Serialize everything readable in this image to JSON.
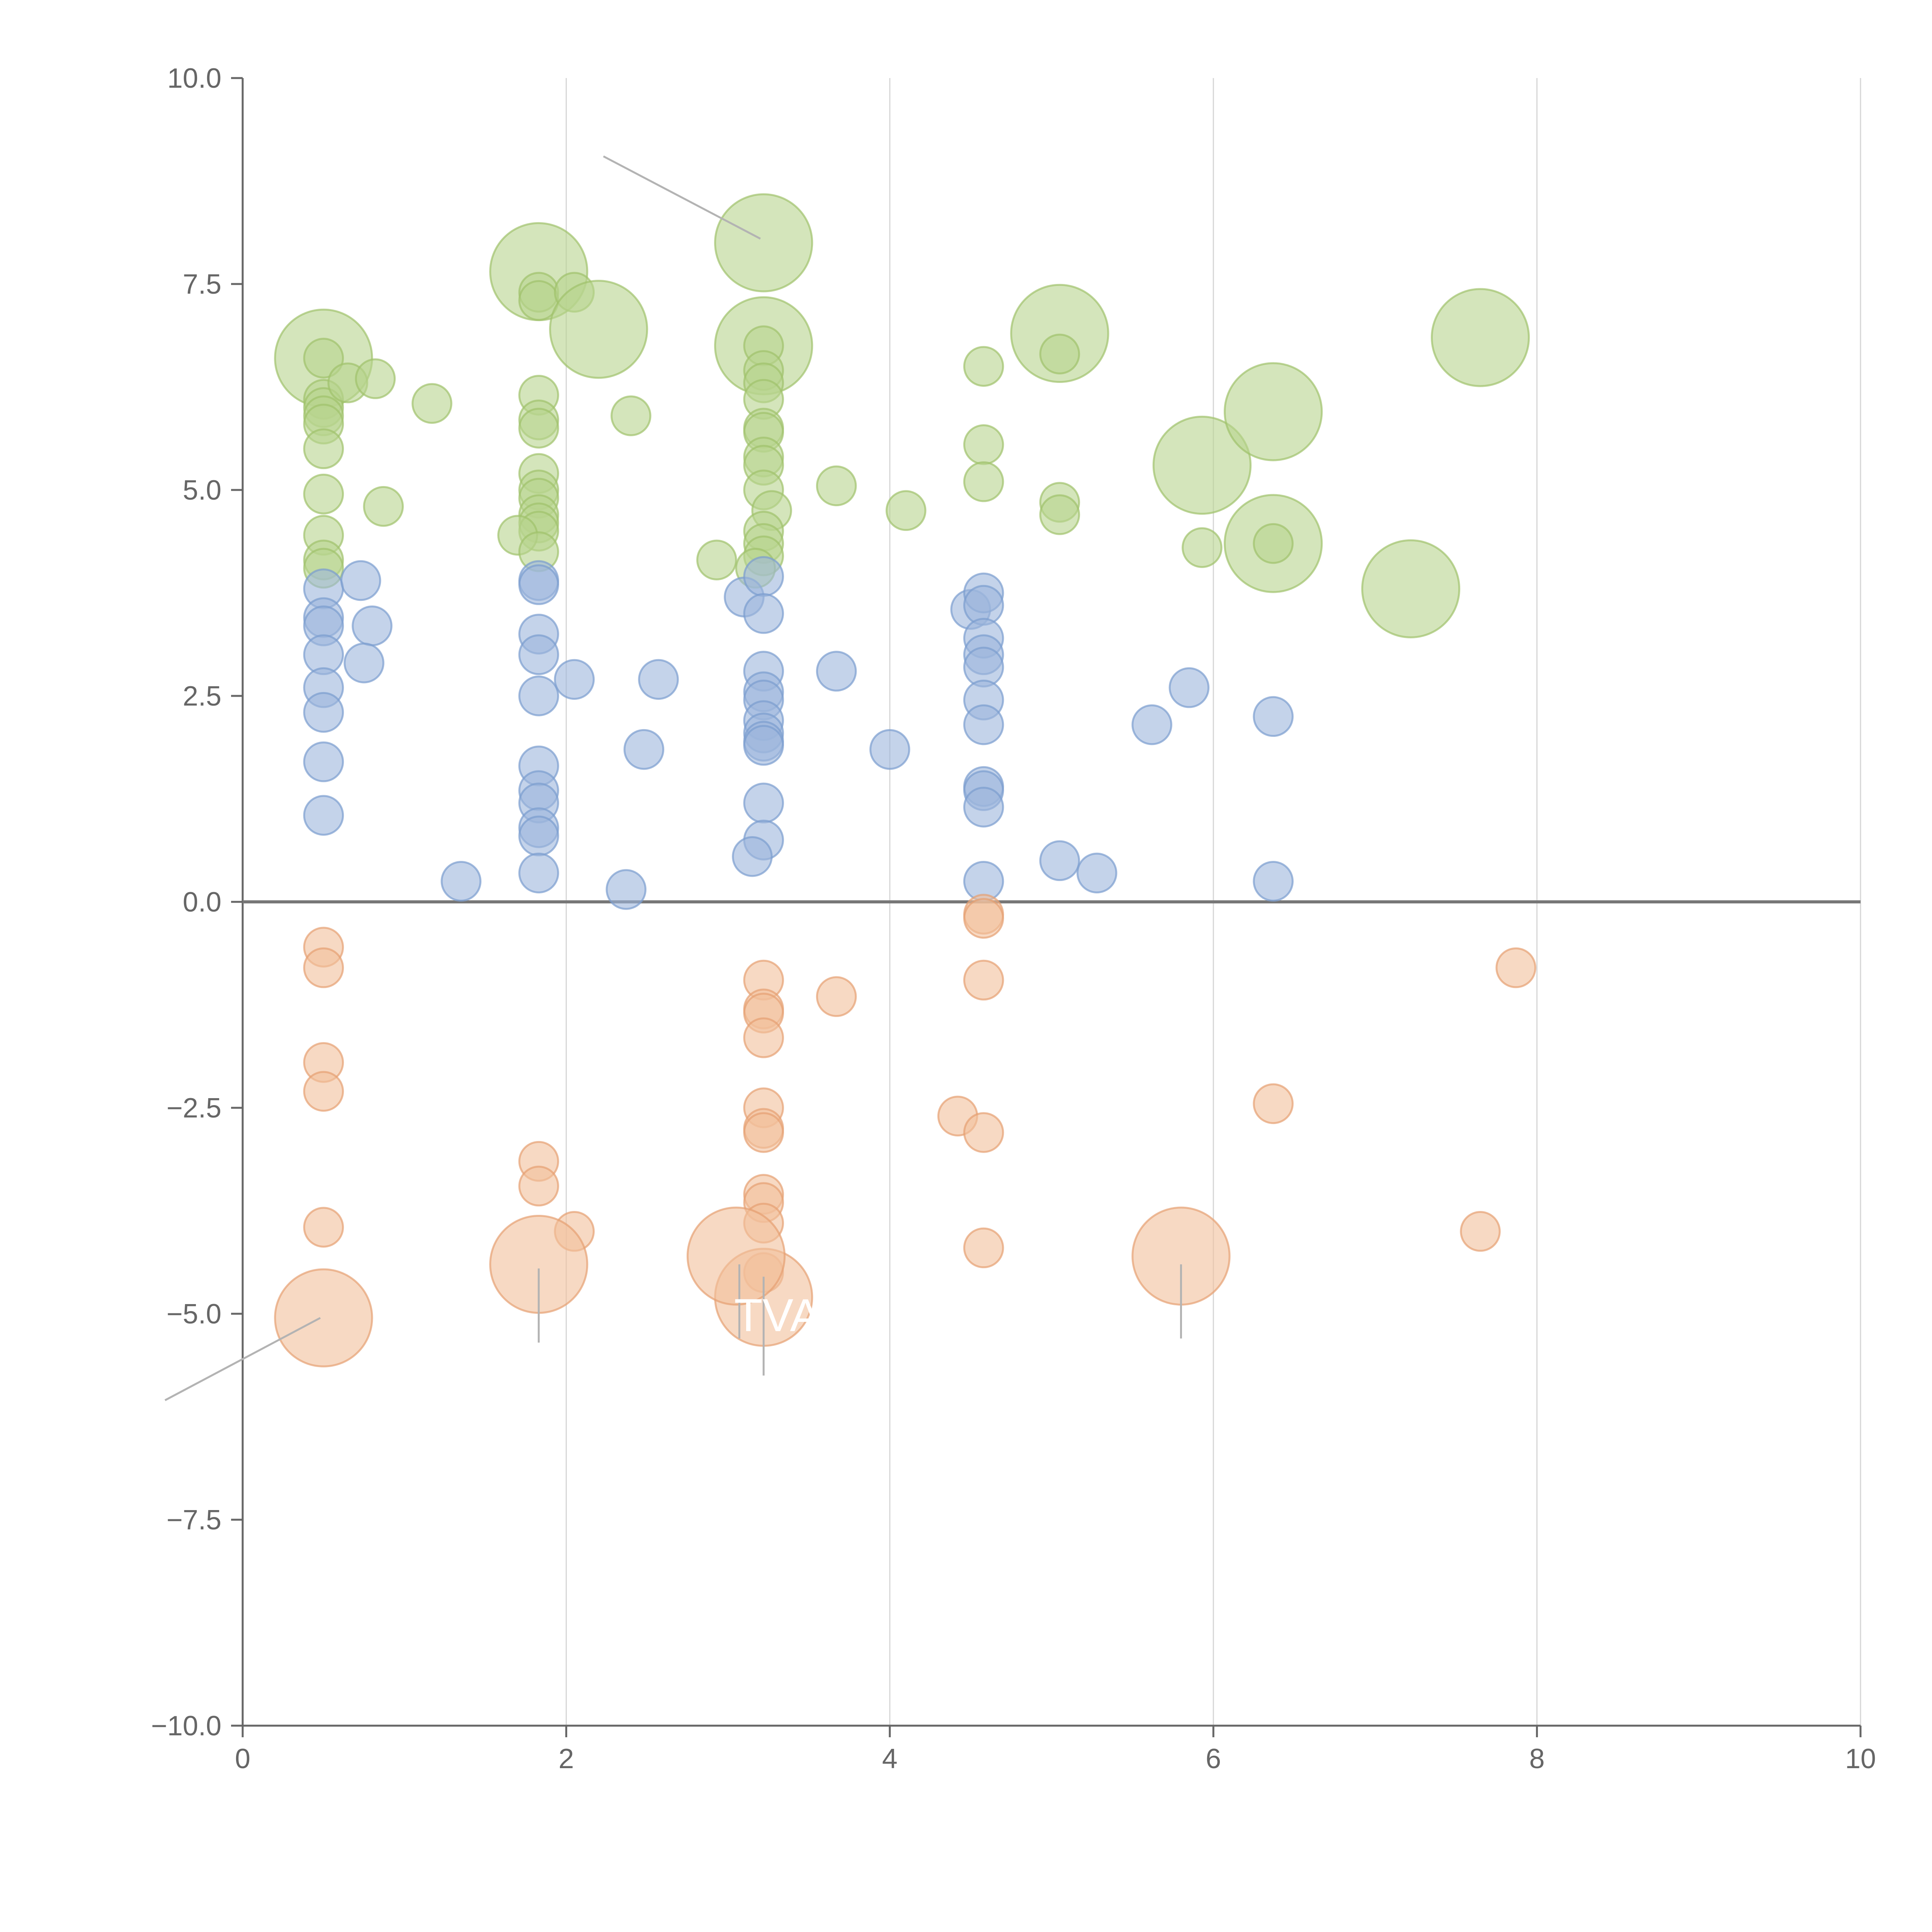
{
  "chart_data": {
    "type": "scatter",
    "title": "",
    "xlabel": "",
    "ylabel": "",
    "xlim": [
      0,
      10
    ],
    "ylim": [
      -10,
      10
    ],
    "grid": "vertical",
    "legend": "none",
    "x_ticks": [
      "0",
      "2",
      "4",
      "6",
      "8",
      "10"
    ],
    "y_ticks": [
      "10.0",
      "7.5",
      "5.0",
      "2.5",
      "0.0",
      "−2.5",
      "−5.0",
      "−7.5",
      "−10.0"
    ],
    "annotations": [
      "TVA"
    ],
    "series": [
      {
        "color": "#b7d38e",
        "stroke": "#9fc26b",
        "points": [
          [
            0.5,
            6.6,
            0.3
          ],
          [
            0.5,
            6.6,
            0.12
          ],
          [
            0.5,
            6.1,
            0.12
          ],
          [
            0.5,
            6.0,
            0.12
          ],
          [
            0.5,
            5.9,
            0.12
          ],
          [
            0.5,
            5.8,
            0.12
          ],
          [
            0.5,
            5.5,
            0.12
          ],
          [
            0.5,
            4.95,
            0.12
          ],
          [
            0.5,
            4.45,
            0.12
          ],
          [
            0.5,
            4.15,
            0.12
          ],
          [
            0.5,
            4.05,
            0.12
          ],
          [
            0.65,
            6.3,
            0.12
          ],
          [
            0.82,
            6.35,
            0.12
          ],
          [
            0.87,
            4.8,
            0.12
          ],
          [
            1.17,
            6.05,
            0.12
          ],
          [
            1.83,
            7.65,
            0.3
          ],
          [
            1.83,
            7.4,
            0.12
          ],
          [
            1.83,
            7.3,
            0.12
          ],
          [
            2.05,
            7.4,
            0.12
          ],
          [
            2.2,
            6.95,
            0.3
          ],
          [
            1.83,
            6.15,
            0.12
          ],
          [
            1.83,
            5.85,
            0.12
          ],
          [
            1.83,
            5.75,
            0.12
          ],
          [
            1.83,
            5.2,
            0.12
          ],
          [
            1.83,
            5.0,
            0.12
          ],
          [
            1.83,
            4.9,
            0.12
          ],
          [
            1.83,
            4.7,
            0.12
          ],
          [
            1.83,
            4.6,
            0.12
          ],
          [
            1.83,
            4.5,
            0.12
          ],
          [
            1.7,
            4.45,
            0.12
          ],
          [
            1.83,
            4.25,
            0.12
          ],
          [
            2.4,
            5.9,
            0.12
          ],
          [
            3.22,
            8.0,
            0.3
          ],
          [
            3.22,
            6.75,
            0.3
          ],
          [
            3.22,
            6.75,
            0.12
          ],
          [
            3.22,
            6.45,
            0.12
          ],
          [
            3.22,
            6.3,
            0.12
          ],
          [
            3.22,
            6.1,
            0.12
          ],
          [
            3.22,
            5.75,
            0.12
          ],
          [
            3.22,
            5.7,
            0.12
          ],
          [
            3.22,
            5.4,
            0.12
          ],
          [
            3.22,
            5.3,
            0.12
          ],
          [
            3.22,
            5.0,
            0.12
          ],
          [
            3.27,
            4.75,
            0.12
          ],
          [
            3.22,
            4.5,
            0.12
          ],
          [
            3.22,
            4.35,
            0.12
          ],
          [
            3.22,
            4.2,
            0.12
          ],
          [
            3.17,
            4.05,
            0.12
          ],
          [
            2.93,
            4.15,
            0.12
          ],
          [
            3.67,
            5.05,
            0.12
          ],
          [
            4.1,
            4.75,
            0.12
          ],
          [
            4.58,
            6.5,
            0.12
          ],
          [
            4.58,
            5.55,
            0.12
          ],
          [
            4.58,
            5.1,
            0.12
          ],
          [
            5.05,
            6.9,
            0.3
          ],
          [
            5.05,
            6.65,
            0.12
          ],
          [
            5.05,
            4.85,
            0.12
          ],
          [
            5.05,
            4.7,
            0.12
          ],
          [
            5.93,
            5.3,
            0.3
          ],
          [
            5.93,
            4.3,
            0.12
          ],
          [
            6.37,
            5.95,
            0.3
          ],
          [
            6.37,
            4.35,
            0.3
          ],
          [
            6.37,
            4.35,
            0.12
          ],
          [
            7.22,
            3.8,
            0.3
          ],
          [
            7.65,
            6.85,
            0.3
          ]
        ]
      },
      {
        "color": "#9db6dc",
        "stroke": "#7b9ccf",
        "points": [
          [
            0.5,
            3.8,
            0.12
          ],
          [
            0.5,
            3.45,
            0.12
          ],
          [
            0.5,
            3.35,
            0.12
          ],
          [
            0.5,
            3.0,
            0.12
          ],
          [
            0.5,
            2.6,
            0.12
          ],
          [
            0.5,
            2.3,
            0.12
          ],
          [
            0.5,
            1.7,
            0.12
          ],
          [
            0.5,
            1.05,
            0.12
          ],
          [
            0.73,
            3.9,
            0.12
          ],
          [
            0.8,
            3.35,
            0.12
          ],
          [
            0.75,
            2.9,
            0.12
          ],
          [
            1.35,
            0.25,
            0.12
          ],
          [
            1.83,
            3.9,
            0.12
          ],
          [
            1.83,
            3.85,
            0.12
          ],
          [
            1.83,
            3.25,
            0.12
          ],
          [
            1.83,
            3.0,
            0.12
          ],
          [
            1.83,
            2.5,
            0.12
          ],
          [
            2.05,
            2.7,
            0.12
          ],
          [
            1.83,
            1.65,
            0.12
          ],
          [
            1.83,
            1.35,
            0.12
          ],
          [
            1.83,
            1.2,
            0.12
          ],
          [
            1.83,
            0.9,
            0.12
          ],
          [
            1.83,
            0.8,
            0.12
          ],
          [
            1.83,
            0.35,
            0.12
          ],
          [
            2.37,
            0.15,
            0.12
          ],
          [
            2.48,
            1.85,
            0.12
          ],
          [
            2.57,
            2.7,
            0.12
          ],
          [
            3.1,
            3.7,
            0.12
          ],
          [
            3.22,
            3.95,
            0.12
          ],
          [
            3.22,
            3.5,
            0.12
          ],
          [
            3.22,
            2.8,
            0.12
          ],
          [
            3.22,
            2.55,
            0.12
          ],
          [
            3.22,
            2.45,
            0.12
          ],
          [
            3.22,
            2.2,
            0.12
          ],
          [
            3.22,
            2.05,
            0.12
          ],
          [
            3.22,
            1.95,
            0.12
          ],
          [
            3.22,
            1.9,
            0.12
          ],
          [
            3.22,
            1.2,
            0.12
          ],
          [
            3.22,
            0.75,
            0.12
          ],
          [
            3.15,
            0.55,
            0.12
          ],
          [
            3.67,
            2.8,
            0.12
          ],
          [
            4.0,
            1.85,
            0.12
          ],
          [
            4.5,
            3.55,
            0.12
          ],
          [
            4.58,
            3.75,
            0.12
          ],
          [
            4.58,
            3.6,
            0.12
          ],
          [
            4.58,
            3.2,
            0.12
          ],
          [
            4.58,
            3.0,
            0.12
          ],
          [
            4.58,
            2.85,
            0.12
          ],
          [
            4.58,
            2.45,
            0.12
          ],
          [
            4.58,
            2.15,
            0.12
          ],
          [
            4.58,
            1.4,
            0.12
          ],
          [
            4.58,
            1.35,
            0.12
          ],
          [
            4.58,
            1.15,
            0.12
          ],
          [
            4.58,
            0.25,
            0.12
          ],
          [
            5.05,
            0.5,
            0.12
          ],
          [
            5.28,
            0.35,
            0.12
          ],
          [
            5.62,
            2.15,
            0.12
          ],
          [
            5.85,
            2.6,
            0.12
          ],
          [
            6.37,
            2.25,
            0.12
          ],
          [
            6.37,
            0.25,
            0.12
          ]
        ]
      },
      {
        "color": "#f2c09b",
        "stroke": "#e6a072",
        "points": [
          [
            0.5,
            -0.55,
            0.12
          ],
          [
            0.5,
            -0.8,
            0.12
          ],
          [
            0.5,
            -1.95,
            0.12
          ],
          [
            0.5,
            -2.3,
            0.12
          ],
          [
            0.5,
            -3.95,
            0.12
          ],
          [
            0.5,
            -5.05,
            0.3
          ],
          [
            1.83,
            -3.15,
            0.12
          ],
          [
            1.83,
            -3.45,
            0.12
          ],
          [
            2.05,
            -4.0,
            0.12
          ],
          [
            1.83,
            -4.4,
            0.3
          ],
          [
            3.22,
            -0.95,
            0.12
          ],
          [
            3.22,
            -1.3,
            0.12
          ],
          [
            3.22,
            -1.35,
            0.12
          ],
          [
            3.22,
            -1.65,
            0.12
          ],
          [
            3.22,
            -2.5,
            0.12
          ],
          [
            3.22,
            -2.75,
            0.12
          ],
          [
            3.22,
            -2.8,
            0.12
          ],
          [
            3.22,
            -3.55,
            0.12
          ],
          [
            3.22,
            -3.65,
            0.12
          ],
          [
            3.22,
            -3.9,
            0.12
          ],
          [
            3.22,
            -4.5,
            0.12
          ],
          [
            3.22,
            -4.8,
            0.3
          ],
          [
            3.05,
            -4.3,
            0.3
          ],
          [
            3.67,
            -1.15,
            0.12
          ],
          [
            4.58,
            -0.15,
            0.12
          ],
          [
            4.58,
            -0.2,
            0.12
          ],
          [
            4.58,
            -0.95,
            0.12
          ],
          [
            4.42,
            -2.6,
            0.12
          ],
          [
            4.58,
            -2.8,
            0.12
          ],
          [
            4.58,
            -4.2,
            0.12
          ],
          [
            5.8,
            -4.3,
            0.3
          ],
          [
            6.37,
            -2.45,
            0.12
          ],
          [
            7.65,
            -4.0,
            0.12
          ],
          [
            7.87,
            -0.8,
            0.12
          ]
        ]
      }
    ]
  }
}
